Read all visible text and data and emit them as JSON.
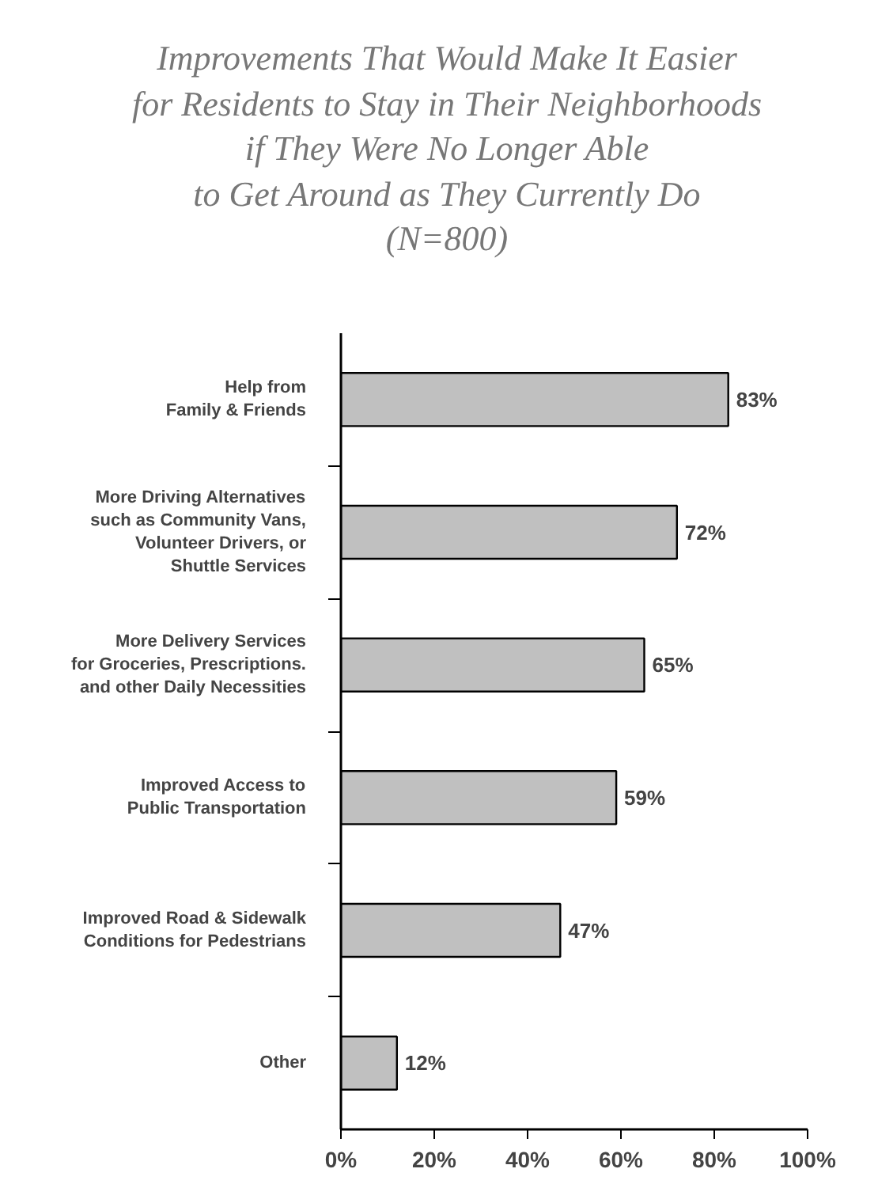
{
  "chart_data": {
    "type": "bar",
    "orientation": "horizontal",
    "title": "Improvements That Would Make It Easier\nfor Residents to Stay in Their Neighborhoods\nif They Were No Longer Able\nto Get Around as They Currently Do\n(N=800)",
    "categories": [
      "Help from\nFamily & Friends",
      "More Driving Alternatives\nsuch as Community Vans,\nVolunteer Drivers, or\nShuttle Services",
      "More Delivery Services\nfor Groceries, Prescriptions.\nand other Daily Necessities",
      "Improved Access to\nPublic Transportation",
      "Improved Road & Sidewalk\nConditions for Pedestrians",
      "Other"
    ],
    "values": [
      83,
      72,
      65,
      59,
      47,
      12
    ],
    "value_labels": [
      "83%",
      "72%",
      "65%",
      "59%",
      "47%",
      "12%"
    ],
    "color": "#c0c0c0",
    "xlim": [
      0,
      100
    ],
    "xticks": [
      {
        "value": 0,
        "label": "0%"
      },
      {
        "value": 20,
        "label": "20%"
      },
      {
        "value": 40,
        "label": "40%"
      },
      {
        "value": 60,
        "label": "60%"
      },
      {
        "value": 80,
        "label": "80%"
      },
      {
        "value": 100,
        "label": "100%"
      }
    ],
    "grid": false
  }
}
